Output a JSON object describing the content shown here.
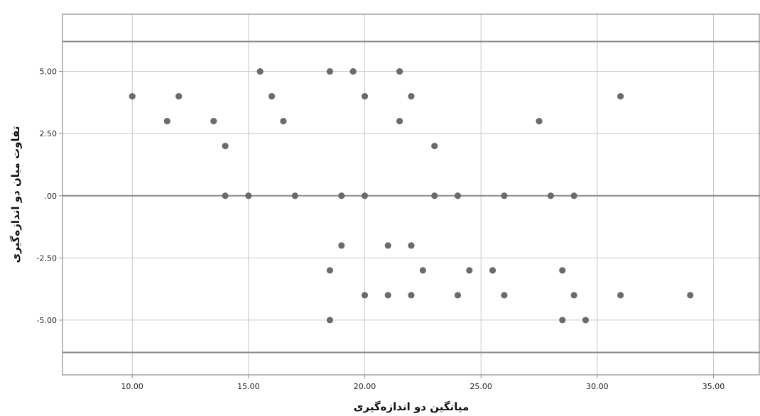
{
  "chart_data": {
    "type": "scatter",
    "title": "",
    "xlabel": "میانگین دو اندازه‌گیری",
    "ylabel": "تفاوت میان دو اندازه‌گیری",
    "xlim": [
      7.0,
      37.0
    ],
    "ylim": [
      -7.2,
      7.3
    ],
    "xticks": [
      10,
      15,
      20,
      25,
      30,
      35
    ],
    "xtick_labels": [
      "10.00",
      "15.00",
      "20.00",
      "25.00",
      "30.00",
      "35.00"
    ],
    "yticks": [
      5,
      2.5,
      0,
      -2.5,
      -5
    ],
    "ytick_labels": [
      "5.00",
      "2.50",
      ".00",
      "-2.50",
      "-5.00"
    ],
    "grid": true,
    "reference_lines": {
      "mean": 0.0,
      "upper_limit": 6.2,
      "lower_limit": -6.3
    },
    "points": [
      {
        "x": 10.0,
        "y": 4
      },
      {
        "x": 11.5,
        "y": 3
      },
      {
        "x": 12.0,
        "y": 4
      },
      {
        "x": 13.5,
        "y": 3
      },
      {
        "x": 14.0,
        "y": 2
      },
      {
        "x": 14.0,
        "y": 0
      },
      {
        "x": 15.0,
        "y": 0
      },
      {
        "x": 15.5,
        "y": 5
      },
      {
        "x": 16.0,
        "y": 4
      },
      {
        "x": 16.5,
        "y": 3
      },
      {
        "x": 17.0,
        "y": 0
      },
      {
        "x": 18.5,
        "y": 5
      },
      {
        "x": 18.5,
        "y": -3
      },
      {
        "x": 18.5,
        "y": -5
      },
      {
        "x": 19.0,
        "y": 0
      },
      {
        "x": 19.0,
        "y": -2
      },
      {
        "x": 19.5,
        "y": 5
      },
      {
        "x": 20.0,
        "y": 4
      },
      {
        "x": 20.0,
        "y": 0
      },
      {
        "x": 20.0,
        "y": -4
      },
      {
        "x": 21.0,
        "y": -2
      },
      {
        "x": 21.0,
        "y": -4
      },
      {
        "x": 21.5,
        "y": 5
      },
      {
        "x": 21.5,
        "y": 3
      },
      {
        "x": 22.0,
        "y": 4
      },
      {
        "x": 22.0,
        "y": -2
      },
      {
        "x": 22.0,
        "y": -4
      },
      {
        "x": 22.5,
        "y": -3
      },
      {
        "x": 23.0,
        "y": 2
      },
      {
        "x": 23.0,
        "y": 0
      },
      {
        "x": 24.0,
        "y": 0
      },
      {
        "x": 24.0,
        "y": -4
      },
      {
        "x": 24.5,
        "y": -3
      },
      {
        "x": 25.5,
        "y": -3
      },
      {
        "x": 26.0,
        "y": 0
      },
      {
        "x": 26.0,
        "y": -4
      },
      {
        "x": 27.5,
        "y": 3
      },
      {
        "x": 28.0,
        "y": 0
      },
      {
        "x": 28.5,
        "y": -3
      },
      {
        "x": 28.5,
        "y": -5
      },
      {
        "x": 29.0,
        "y": 0
      },
      {
        "x": 29.0,
        "y": -4
      },
      {
        "x": 29.5,
        "y": -5
      },
      {
        "x": 31.0,
        "y": 4
      },
      {
        "x": 31.0,
        "y": -4
      },
      {
        "x": 34.0,
        "y": -4
      }
    ]
  }
}
